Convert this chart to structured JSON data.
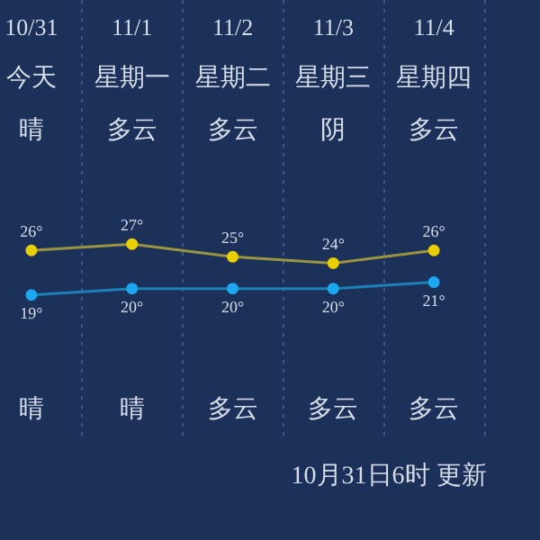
{
  "chart_data": {
    "type": "line",
    "categories": [
      "10/31",
      "11/1",
      "11/2",
      "11/3",
      "11/4"
    ],
    "series": [
      {
        "color": "#e8d000",
        "values": [
          26,
          27,
          25,
          24,
          26
        ],
        "value_labels": [
          "26°",
          "27°",
          "25°",
          "24°",
          "26°"
        ]
      },
      {
        "color": "#1ca8f0",
        "values": [
          19,
          20,
          20,
          20,
          21
        ],
        "value_labels": [
          "19°",
          "20°",
          "20°",
          "20°",
          "21°"
        ]
      }
    ],
    "annotations": [
      "今天",
      "星期一",
      "星期二",
      "星期三",
      "星期四",
      "晴",
      "多云",
      "多云",
      "阴",
      "多云",
      "晴",
      "晴",
      "多云",
      "多云",
      "多云",
      "10月31日6时 更新"
    ],
    "grid": "x",
    "legend": false,
    "marker": "circle",
    "line_style": "solid"
  }
}
